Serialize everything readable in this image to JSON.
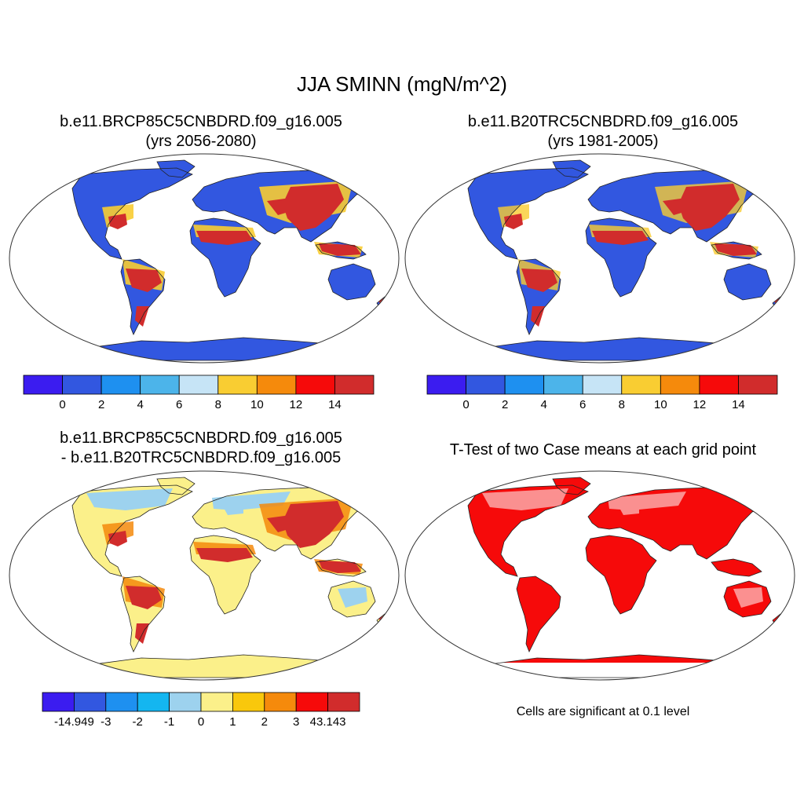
{
  "title": "JJA SMINN (mgN/m^2)",
  "panels": [
    {
      "line1": "b.e11.BRCP85C5CNBDRD.f09_g16.005",
      "line2": "(yrs 2056-2080)"
    },
    {
      "line1": "b.e11.B20TRC5CNBDRD.f09_g16.005",
      "line2": "(yrs 1981-2005)"
    },
    {
      "line1": "b.e11.BRCP85C5CNBDRD.f09_g16.005",
      "line2": "- b.e11.B20TRC5CNBDRD.f09_g16.005"
    },
    {
      "line1": "T-Test of two Case means at each grid point"
    }
  ],
  "colorbar_top": {
    "colors": [
      "#3b1cf0",
      "#3257e0",
      "#1e90f0",
      "#4cb4ea",
      "#c6e4f6",
      "#f9cd32",
      "#f58a0c",
      "#f60a0a",
      "#d12c2c"
    ],
    "labels": [
      "0",
      "2",
      "4",
      "6",
      "8",
      "10",
      "12",
      "14"
    ]
  },
  "colorbar_diff": {
    "colors": [
      "#3b1cf0",
      "#3257e0",
      "#1e90f0",
      "#14b6f0",
      "#9dd2ee",
      "#fbf08a",
      "#f9c80c",
      "#f58a0c",
      "#f60a0a",
      "#d12c2c"
    ],
    "labels": [
      "-14.949",
      "-3",
      "-2",
      "-1",
      "0",
      "1",
      "2",
      "3",
      "43.143"
    ]
  },
  "significance_note": "Cells are significant at 0.1 level"
}
